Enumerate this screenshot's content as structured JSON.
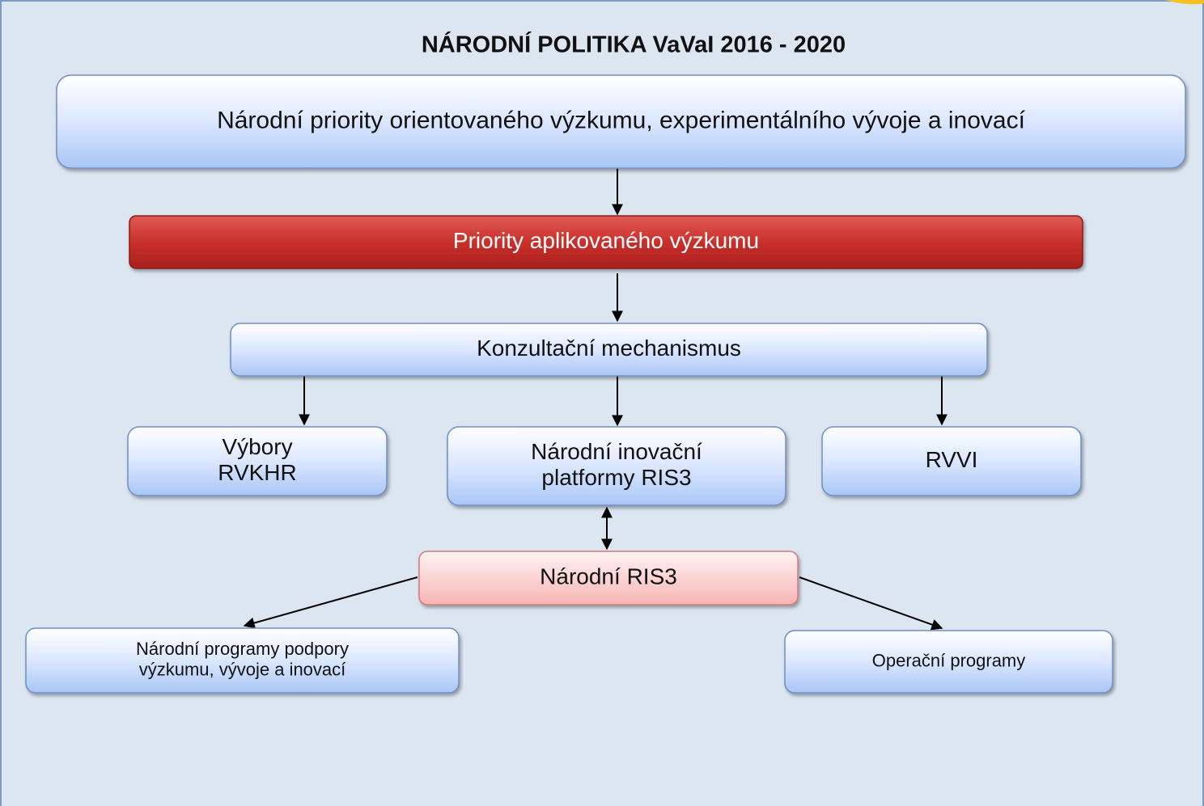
{
  "header": {
    "title": "NÁRODNÍ POLITIKA VaVaI 2016 - 2020"
  },
  "nodes": [
    {
      "lines": [
        "Národní priority orientovaného výzkumu, experimentálního vývoje a inovací"
      ]
    },
    {
      "lines": [
        "Priority aplikovaného výzkumu"
      ]
    },
    {
      "lines": [
        "Konzultační mechanismus"
      ]
    },
    {
      "lines": [
        "Výbory",
        "RVKHR"
      ]
    },
    {
      "lines": [
        "Národní inovační",
        "platformy RIS3"
      ]
    },
    {
      "lines": [
        "RVVI"
      ]
    },
    {
      "lines": [
        "Národní RIS3"
      ]
    },
    {
      "lines": [
        "Národní programy podpory",
        "výzkumu, vývoje a inovací"
      ]
    },
    {
      "lines": [
        "Operační programy"
      ]
    }
  ]
}
